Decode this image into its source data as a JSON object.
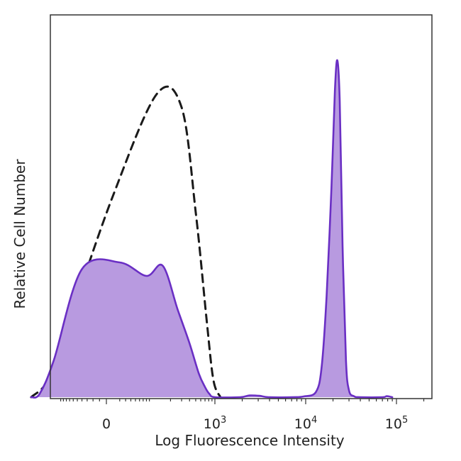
{
  "chart_data": {
    "type": "area",
    "title": "",
    "xlabel": "Log Fluorescence Intensity",
    "ylabel": "Relative Cell Number",
    "x_scale": "biexponential",
    "x_ticks": [
      {
        "value": 0,
        "base": "0",
        "exp": ""
      },
      {
        "value": 1000,
        "base": "10",
        "exp": "3"
      },
      {
        "value": 10000,
        "base": "10",
        "exp": "4"
      },
      {
        "value": 100000,
        "base": "10",
        "exp": "5"
      }
    ],
    "y_ticks_shown": false,
    "ylim": [
      0,
      1
    ],
    "legend": "none",
    "series": [
      {
        "style": "dashed",
        "color": "#1a1a1a",
        "fill": false,
        "points": [
          [
            -300,
            0
          ],
          [
            -150,
            0.06
          ],
          [
            -60,
            0.26
          ],
          [
            10,
            0.6
          ],
          [
            120,
            0.9
          ],
          [
            300,
            0.86
          ],
          [
            500,
            0.55
          ],
          [
            750,
            0.22
          ],
          [
            950,
            0.05
          ],
          [
            1150,
            0
          ]
        ]
      },
      {
        "style": "solid",
        "color": "#6a2fc4",
        "fill": true,
        "fill_color": "#b89ae0",
        "points": [
          [
            -300,
            0
          ],
          [
            -220,
            0.01
          ],
          [
            -130,
            0.11
          ],
          [
            -40,
            0.38
          ],
          [
            20,
            0.4
          ],
          [
            80,
            0.36
          ],
          [
            150,
            0.39
          ],
          [
            260,
            0.26
          ],
          [
            400,
            0.16
          ],
          [
            560,
            0.07
          ],
          [
            700,
            0.03
          ],
          [
            820,
            0.01
          ],
          [
            1000,
            0
          ],
          [
            1900,
            0
          ],
          [
            2400,
            0.005
          ],
          [
            3100,
            0.004
          ],
          [
            3900,
            0
          ],
          [
            7000,
            0
          ],
          [
            9500,
            0.002
          ],
          [
            13000,
            0.016
          ],
          [
            15000,
            0.09
          ],
          [
            17000,
            0.3
          ],
          [
            19200,
            0.62
          ],
          [
            21000,
            0.91
          ],
          [
            22300,
            1.0
          ],
          [
            23700,
            0.88
          ],
          [
            25500,
            0.45
          ],
          [
            27800,
            0.11
          ],
          [
            30000,
            0.02
          ],
          [
            34000,
            0.003
          ],
          [
            40000,
            0
          ],
          [
            70000,
            0
          ],
          [
            78000,
            0.003
          ],
          [
            90000,
            0
          ]
        ]
      }
    ]
  }
}
